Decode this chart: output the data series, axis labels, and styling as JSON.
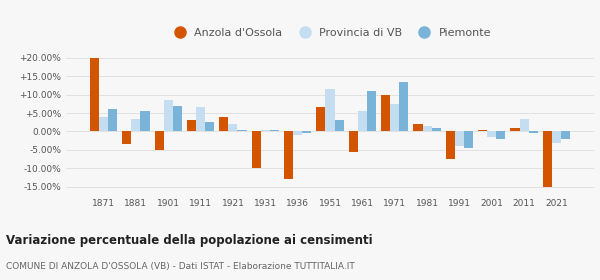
{
  "years": [
    1871,
    1881,
    1901,
    1911,
    1921,
    1931,
    1936,
    1951,
    1961,
    1971,
    1981,
    1991,
    2001,
    2011,
    2021
  ],
  "anzola": [
    20.0,
    -3.5,
    -5.0,
    3.0,
    4.0,
    -10.0,
    -13.0,
    6.5,
    -5.5,
    10.0,
    2.0,
    -7.5,
    0.5,
    1.0,
    -15.0
  ],
  "provincia": [
    4.0,
    3.5,
    8.5,
    6.5,
    2.0,
    0.5,
    -1.0,
    11.5,
    5.5,
    7.5,
    1.5,
    -4.0,
    -1.5,
    3.5,
    -3.0
  ],
  "piemonte": [
    6.0,
    5.5,
    7.0,
    2.5,
    0.5,
    0.5,
    -0.5,
    3.0,
    11.0,
    13.5,
    1.0,
    -4.5,
    -2.0,
    -0.5,
    -2.0
  ],
  "color_anzola": "#d45500",
  "color_provincia": "#c5ddf0",
  "color_piemonte": "#7ab3d8",
  "title": "Variazione percentuale della popolazione ai censimenti",
  "subtitle": "COMUNE DI ANZOLA D'OSSOLA (VB) - Dati ISTAT - Elaborazione TUTTITALIA.IT",
  "legend_labels": [
    "Anzola d'Ossola",
    "Provincia di VB",
    "Piemonte"
  ],
  "ylim": [
    -17.5,
    23.5
  ],
  "yticks": [
    -15.0,
    -10.0,
    -5.0,
    0.0,
    5.0,
    10.0,
    15.0,
    20.0
  ],
  "bar_width": 0.28,
  "background_color": "#f7f7f7",
  "grid_color": "#dddddd"
}
